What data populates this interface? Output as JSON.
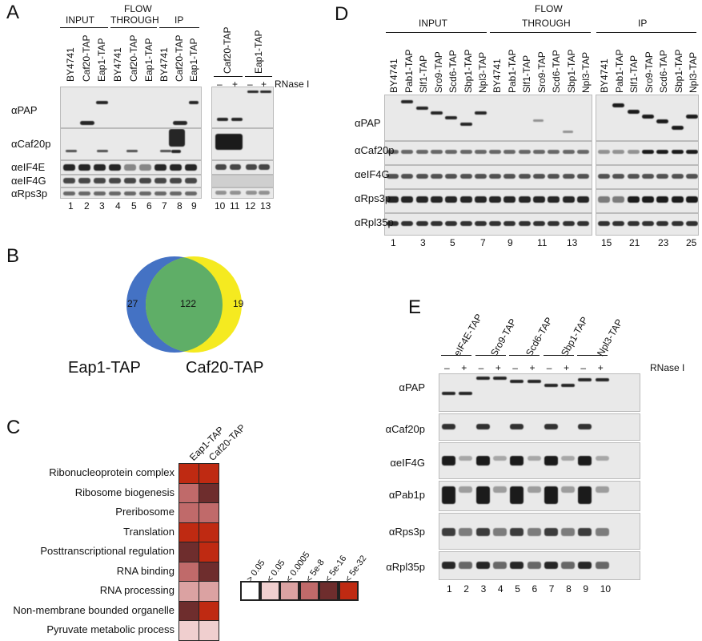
{
  "panelA": {
    "label": "A",
    "groups": [
      "INPUT",
      "FLOW\nTHROUGH",
      "IP"
    ],
    "group_input": "INPUT",
    "group_flow1": "FLOW",
    "group_flow2": "THROUGH",
    "group_ip": "IP",
    "strains": [
      "BY4741",
      "Caf20-TAP",
      "Eap1-TAP",
      "BY4741",
      "Caf20-TAP",
      "Eap1-TAP",
      "BY4741",
      "Caf20-TAP",
      "Eap1-TAP"
    ],
    "right_strains": [
      "Caf20-TAP",
      "Eap1-TAP"
    ],
    "rnase_label": "RNase I",
    "rnase_signs": [
      "–",
      "+",
      "–",
      "+"
    ],
    "antibodies": [
      "αPAP",
      "αCaf20p",
      "αeIF4E",
      "αeIF4G",
      "αRps3p"
    ],
    "lanes": [
      "1",
      "2",
      "3",
      "4",
      "5",
      "6",
      "7",
      "8",
      "9"
    ],
    "right_lanes": [
      "10",
      "11",
      "12",
      "13"
    ]
  },
  "panelB": {
    "label": "B",
    "left_only": "27",
    "overlap": "122",
    "right_only": "19",
    "left_name": "Eap1-TAP",
    "right_name": "Caf20-TAP",
    "colors": {
      "left": "#4472c4",
      "overlap": "#5fae67",
      "right": "#f5ea20"
    }
  },
  "panelC": {
    "label": "C",
    "columns": [
      "Eap1-TAP",
      "Caf20-TAP"
    ],
    "terms": [
      "Ribonucleoprotein complex",
      "Ribosome biogenesis",
      "Preribosome",
      "Translation",
      "Posttranscriptional regulation",
      "RNA binding",
      "RNA processing",
      "Non-membrane bounded organelle",
      "Pyruvate metabolic process"
    ],
    "legend_labels": [
      "> 0.05",
      "< 0.05",
      "< 0.0005",
      "< 5e-8",
      "< 5e-16",
      "< 5e-32"
    ],
    "legend_colors": [
      "#ffffff",
      "#f0cfcf",
      "#dba2a2",
      "#c06a6a",
      "#6e2d2d",
      "#bf2a12"
    ]
  },
  "panelD": {
    "label": "D",
    "group_input": "INPUT",
    "group_flow1": "FLOW",
    "group_flow2": "THROUGH",
    "group_ip": "IP",
    "strains": [
      "BY4741",
      "Pab1-TAP",
      "Slf1-TAP",
      "Sro9-TAP",
      "Scd6-TAP",
      "Sbp1-TAP",
      "Npl3-TAP",
      "BY4741",
      "Pab1-TAP",
      "Slf1-TAP",
      "Sro9-TAP",
      "Scd6-TAP",
      "Sbp1-TAP",
      "Npl3-TAP",
      "BY4741",
      "Pab1-TAP",
      "Slf1-TAP",
      "Sro9-TAP",
      "Scd6-TAP",
      "Sbp1-TAP",
      "Npl3-TAP"
    ],
    "antibodies": [
      "αPAP",
      "αCaf20p",
      "αeIF4G",
      "αRps3p",
      "αRpl35p"
    ],
    "lanes_left": [
      "1",
      "3",
      "5",
      "7",
      "9",
      "11",
      "13"
    ],
    "lanes_right": [
      "15",
      "21",
      "23",
      "25"
    ]
  },
  "panelE": {
    "label": "E",
    "strains": [
      "eIF4E-TAP",
      "Sro9-TAP",
      "Scd6-TAP",
      "Sbp1-TAP",
      "Npl3-TAP"
    ],
    "rnase_label": "RNase I",
    "rnase_signs": [
      "–",
      "+",
      "–",
      "+",
      "–",
      "+",
      "–",
      "+",
      "–",
      "+"
    ],
    "antibodies": [
      "αPAP",
      "αCaf20p",
      "αeIF4G",
      "αPab1p",
      "αRps3p",
      "αRpl35p"
    ],
    "lanes": [
      "1",
      "2",
      "3",
      "4",
      "5",
      "6",
      "7",
      "8",
      "9",
      "10"
    ]
  }
}
